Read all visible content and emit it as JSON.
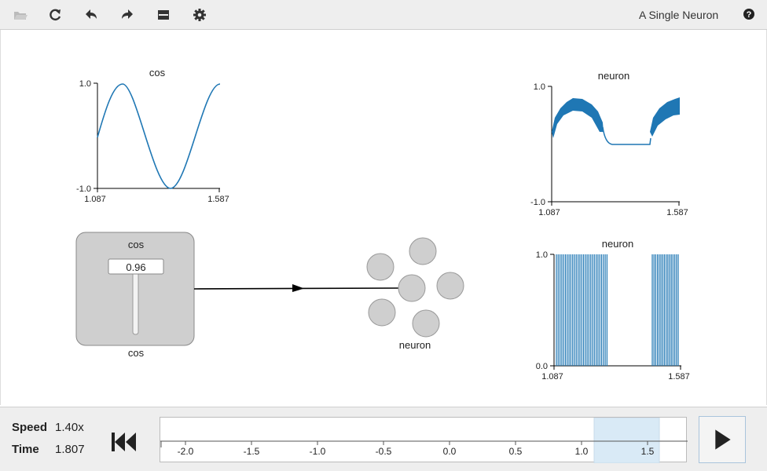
{
  "toolbar": {
    "buttons": [
      {
        "name": "open-icon"
      },
      {
        "name": "refresh-icon"
      },
      {
        "name": "undo-icon"
      },
      {
        "name": "redo-icon"
      },
      {
        "name": "minimap-icon"
      },
      {
        "name": "settings-icon"
      }
    ],
    "title": "A Single Neuron",
    "help_icon": "help-icon"
  },
  "plots": {
    "cos_plot": {
      "title": "cos",
      "y_max": "1.0",
      "y_min": "-1.0",
      "x_min": "1.087",
      "x_max": "1.587"
    },
    "neuron_value_plot": {
      "title": "neuron",
      "y_max": "1.0",
      "y_min": "-1.0",
      "x_min": "1.087",
      "x_max": "1.587"
    },
    "neuron_spike_plot": {
      "title": "neuron",
      "y_max": "1.0",
      "y_min": "0.0",
      "x_min": "1.087",
      "x_max": "1.587"
    }
  },
  "slider": {
    "title": "cos",
    "value": "0.96",
    "label": "cos"
  },
  "ensemble": {
    "label": "neuron"
  },
  "sim": {
    "speed_label": "Speed",
    "speed_value": "1.40x",
    "time_label": "Time",
    "time_value": "1.807",
    "timeline_ticks": [
      "-2.0",
      "-1.5",
      "-1.0",
      "-0.5",
      "0.0",
      "0.5",
      "1.0",
      "1.5"
    ]
  },
  "colors": {
    "plot_line": "#1f77b4",
    "node_fill": "#cfcfcf",
    "highlight": "#d9eaf6",
    "toolbar_bg": "#eeeeee"
  }
}
